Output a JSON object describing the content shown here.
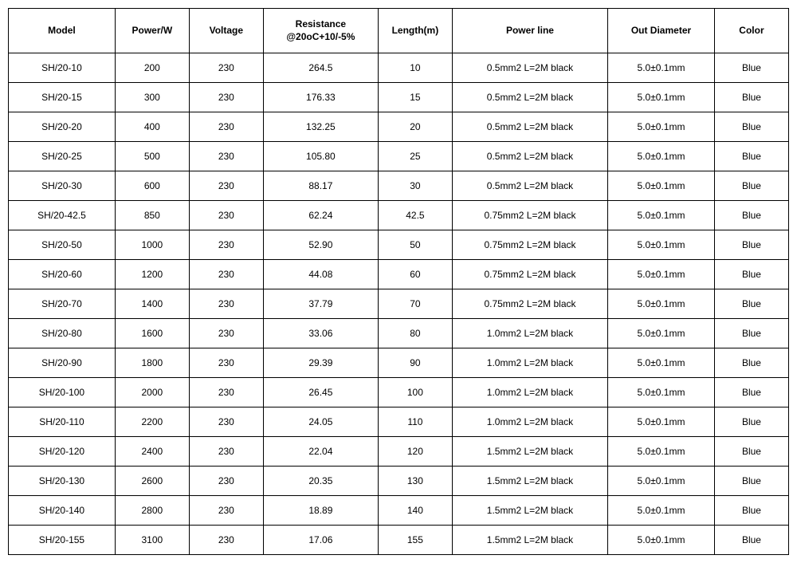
{
  "table": {
    "columns": [
      "Model",
      "Power/W",
      "Voltage",
      "Resistance\n@20oC+10/-5%",
      "Length(m)",
      "Power line",
      "Out Diameter",
      "Color"
    ],
    "rows": [
      [
        "SH/20-10",
        "200",
        "230",
        "264.5",
        "10",
        "0.5mm2   L=2M   black",
        "5.0±0.1mm",
        "Blue"
      ],
      [
        "SH/20-15",
        "300",
        "230",
        "176.33",
        "15",
        "0.5mm2   L=2M   black",
        "5.0±0.1mm",
        "Blue"
      ],
      [
        "SH/20-20",
        "400",
        "230",
        "132.25",
        "20",
        "0.5mm2   L=2M   black",
        "5.0±0.1mm",
        "Blue"
      ],
      [
        "SH/20-25",
        "500",
        "230",
        "105.80",
        "25",
        "0.5mm2   L=2M   black",
        "5.0±0.1mm",
        "Blue"
      ],
      [
        "SH/20-30",
        "600",
        "230",
        "88.17",
        "30",
        "0.5mm2   L=2M   black",
        "5.0±0.1mm",
        "Blue"
      ],
      [
        "SH/20-42.5",
        "850",
        "230",
        "62.24",
        "42.5",
        "0.75mm2   L=2M   black",
        "5.0±0.1mm",
        "Blue"
      ],
      [
        "SH/20-50",
        "1000",
        "230",
        "52.90",
        "50",
        "0.75mm2   L=2M   black",
        "5.0±0.1mm",
        "Blue"
      ],
      [
        "SH/20-60",
        "1200",
        "230",
        "44.08",
        "60",
        "0.75mm2   L=2M   black",
        "5.0±0.1mm",
        "Blue"
      ],
      [
        "SH/20-70",
        "1400",
        "230",
        "37.79",
        "70",
        "0.75mm2   L=2M   black",
        "5.0±0.1mm",
        "Blue"
      ],
      [
        "SH/20-80",
        "1600",
        "230",
        "33.06",
        "80",
        "1.0mm2   L=2M   black",
        "5.0±0.1mm",
        "Blue"
      ],
      [
        "SH/20-90",
        "1800",
        "230",
        "29.39",
        "90",
        "1.0mm2   L=2M   black",
        "5.0±0.1mm",
        "Blue"
      ],
      [
        "SH/20-100",
        "2000",
        "230",
        "26.45",
        "100",
        "1.0mm2   L=2M   black",
        "5.0±0.1mm",
        "Blue"
      ],
      [
        "SH/20-110",
        "2200",
        "230",
        "24.05",
        "110",
        "1.0mm2   L=2M   black",
        "5.0±0.1mm",
        "Blue"
      ],
      [
        "SH/20-120",
        "2400",
        "230",
        "22.04",
        "120",
        "1.5mm2   L=2M   black",
        "5.0±0.1mm",
        "Blue"
      ],
      [
        "SH/20-130",
        "2600",
        "230",
        "20.35",
        "130",
        "1.5mm2   L=2M   black",
        "5.0±0.1mm",
        "Blue"
      ],
      [
        "SH/20-140",
        "2800",
        "230",
        "18.89",
        "140",
        "1.5mm2   L=2M   black",
        "5.0±0.1mm",
        "Blue"
      ],
      [
        "SH/20-155",
        "3100",
        "230",
        "17.06",
        "155",
        "1.5mm2   L=2M   black",
        "5.0±0.1mm",
        "Blue"
      ]
    ],
    "col_classes": [
      "col-model",
      "col-power",
      "col-voltage",
      "col-resist",
      "col-length",
      "col-line",
      "col-diameter",
      "col-color"
    ]
  }
}
